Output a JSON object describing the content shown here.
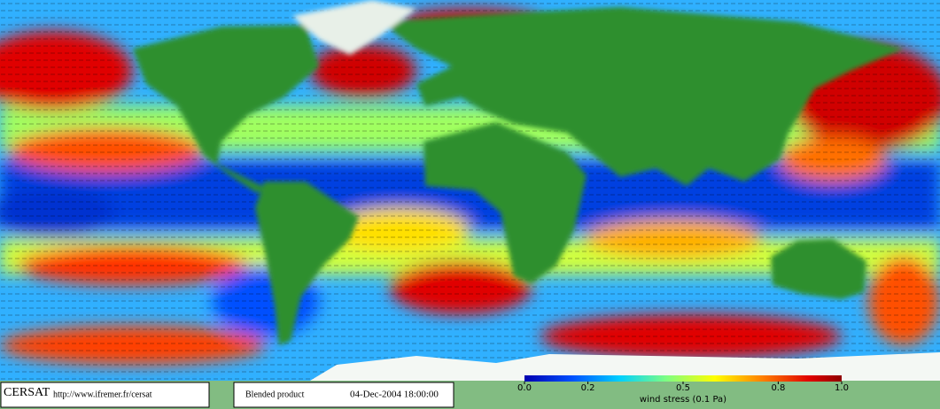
{
  "logo": {
    "name": "CERSAT",
    "url": "http://www.ifremer.fr/cersat"
  },
  "product": {
    "name": "Blended product",
    "date": "04-Dec-2004 18:00:00"
  },
  "colorbar": {
    "label": "wind stress (0.1 Pa)",
    "lim": [
      0,
      1
    ],
    "ticks": [
      {
        "value": 0,
        "label": "0.0"
      },
      0.2,
      0.5,
      0.8,
      {
        "value": 1,
        "label": "1.0"
      }
    ]
  }
}
